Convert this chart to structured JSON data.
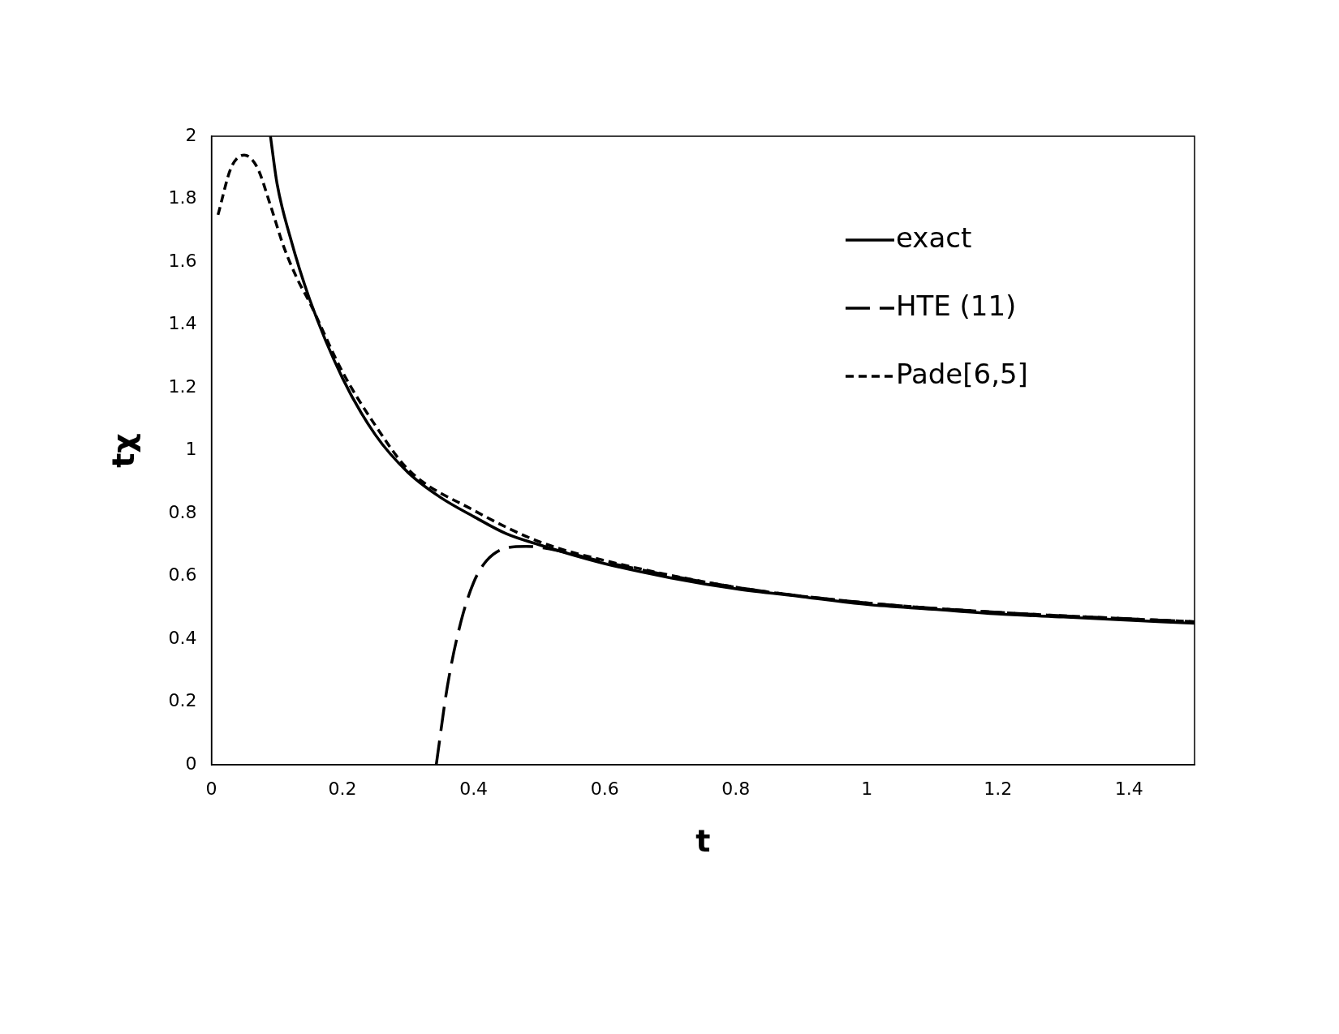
{
  "chart_data": {
    "type": "line",
    "xlabel": "t",
    "ylabel": "tχ",
    "xlim": [
      0,
      1.5
    ],
    "ylim": [
      0,
      2
    ],
    "xticks": [
      0,
      0.2,
      0.4,
      0.6,
      0.8,
      1,
      1.2,
      1.4
    ],
    "yticks": [
      0,
      0.2,
      0.4,
      0.6,
      0.8,
      1,
      1.2,
      1.4,
      1.6,
      1.8,
      2
    ],
    "grid": false,
    "legend": "top right",
    "marker": "none",
    "series": [
      {
        "name": "exact",
        "color": "#000000",
        "line_style": "solid",
        "x": [
          0.09,
          0.1,
          0.12,
          0.15,
          0.2,
          0.25,
          0.3,
          0.35,
          0.4,
          0.45,
          0.5,
          0.6,
          0.7,
          0.8,
          0.9,
          1.0,
          1.1,
          1.2,
          1.3,
          1.4,
          1.5
        ],
        "values": [
          2.0,
          1.85,
          1.68,
          1.48,
          1.23,
          1.05,
          0.93,
          0.85,
          0.79,
          0.735,
          0.7,
          0.64,
          0.595,
          0.56,
          0.535,
          0.51,
          0.495,
          0.48,
          0.47,
          0.46,
          0.45
        ]
      },
      {
        "name": "HTE (11)",
        "color": "#000000",
        "line_style": "longdash",
        "x": [
          0.343,
          0.36,
          0.38,
          0.4,
          0.42,
          0.45,
          0.48,
          0.52,
          0.6,
          0.8,
          1.0,
          1.2,
          1.5
        ],
        "values": [
          0,
          0.25,
          0.45,
          0.58,
          0.65,
          0.69,
          0.695,
          0.685,
          0.645,
          0.565,
          0.515,
          0.485,
          0.455
        ]
      },
      {
        "name": "Pade[6,5]",
        "color": "#000000",
        "line_style": "dashed",
        "x": [
          0.01,
          0.03,
          0.05,
          0.07,
          0.09,
          0.11,
          0.13,
          0.15,
          0.2,
          0.25,
          0.3,
          0.4,
          0.5,
          0.6,
          0.8,
          1.0,
          1.2,
          1.5
        ],
        "values": [
          1.75,
          1.9,
          1.94,
          1.9,
          1.78,
          1.65,
          1.55,
          1.47,
          1.25,
          1.08,
          0.94,
          0.81,
          0.71,
          0.65,
          0.565,
          0.515,
          0.485,
          0.455
        ]
      }
    ]
  }
}
